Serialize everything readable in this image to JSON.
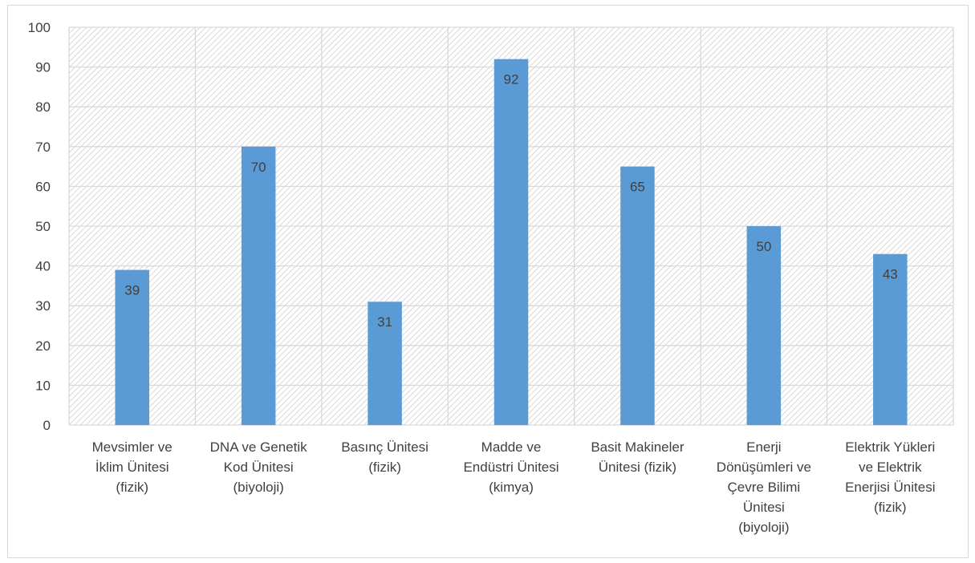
{
  "chart_data": {
    "type": "bar",
    "categories": [
      [
        "Mevsimler ve",
        "İklim Ünitesi",
        "(fizik)"
      ],
      [
        "DNA ve Genetik",
        "Kod Ünitesi",
        "(biyoloji)"
      ],
      [
        "Basınç Ünitesi",
        "(fizik)"
      ],
      [
        "Madde ve",
        "Endüstri Ünitesi",
        "(kimya)"
      ],
      [
        "Basit Makineler",
        "Ünitesi (fizik)"
      ],
      [
        "Enerji",
        "Dönüşümleri ve",
        "Çevre Bilimi",
        "Ünitesi",
        "(biyoloji)"
      ],
      [
        "Elektrik Yükleri",
        "ve Elektrik",
        "Enerjisi Ünitesi",
        "(fizik)"
      ]
    ],
    "values": [
      39,
      70,
      31,
      92,
      65,
      50,
      43
    ],
    "ylim": [
      0,
      100
    ],
    "yticks": [
      "0",
      "10",
      "20",
      "30",
      "40",
      "50",
      "60",
      "70",
      "80",
      "90",
      "100"
    ],
    "grid": true,
    "legend": "none",
    "colors": {
      "bar": "#5b9bd5",
      "grid": "#d9d9d9",
      "hatch": "#cfcfcf",
      "text": "#404040"
    }
  }
}
